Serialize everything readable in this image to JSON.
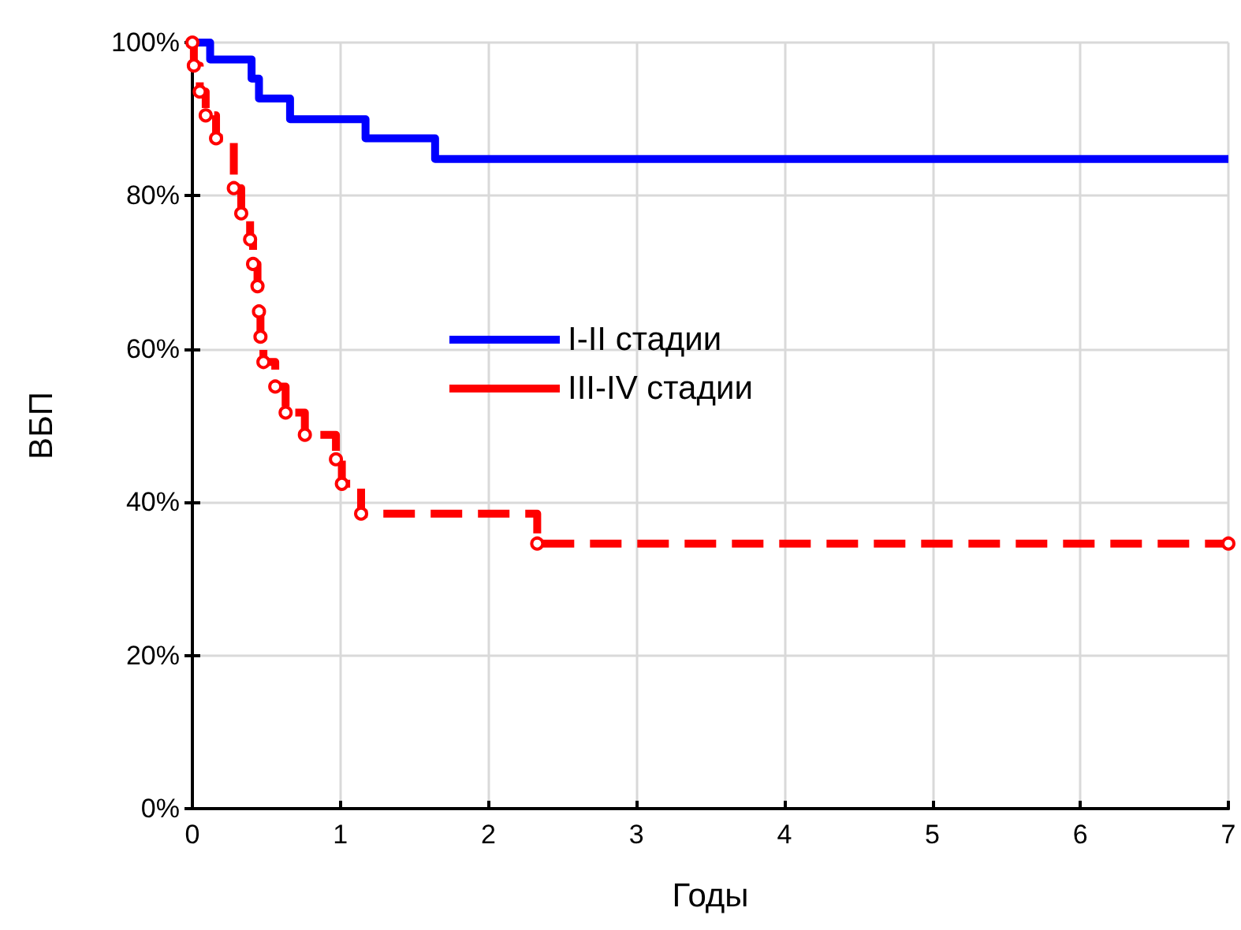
{
  "chart_data": {
    "type": "step",
    "xlabel": "Годы",
    "ylabel": "ВБП",
    "xlim": [
      0,
      7
    ],
    "xticks": [
      0,
      1,
      2,
      3,
      4,
      5,
      6,
      7
    ],
    "ylim": [
      0,
      100
    ],
    "yticks": [
      {
        "value": 0,
        "label": "0%"
      },
      {
        "value": 20,
        "label": "20%"
      },
      {
        "value": 40,
        "label": "40%"
      },
      {
        "value": 60,
        "label": "60%"
      },
      {
        "value": 80,
        "label": "80%"
      },
      {
        "value": 100,
        "label": "100%"
      }
    ],
    "grid": true,
    "legend": "left",
    "series": [
      {
        "name": "I-II стадии",
        "color": "#0000ff",
        "line_style": "solid",
        "marker": "none",
        "x": [
          0,
          0.12,
          0.4,
          0.45,
          0.66,
          1.17,
          1.64,
          7
        ],
        "values": [
          100,
          97.8,
          95.3,
          92.7,
          90.0,
          87.5,
          84.8,
          84.8
        ]
      },
      {
        "name": "III-IV стадии",
        "color": "#ff0000",
        "line_style": "dashed",
        "marker": "circle",
        "x": [
          0,
          0.01,
          0.05,
          0.09,
          0.16,
          0.28,
          0.33,
          0.39,
          0.41,
          0.44,
          0.45,
          0.46,
          0.48,
          0.56,
          0.63,
          0.76,
          0.97,
          1.01,
          1.14,
          2.33,
          7
        ],
        "values": [
          100,
          97,
          93.6,
          90.5,
          87.5,
          81,
          77.7,
          74.3,
          71.1,
          68.2,
          64.9,
          61.6,
          58.3,
          55.1,
          51.7,
          48.8,
          45.6,
          42.4,
          38.5,
          34.6,
          34.6
        ]
      }
    ]
  }
}
